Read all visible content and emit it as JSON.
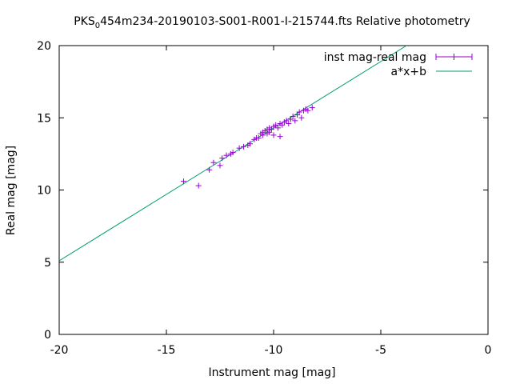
{
  "chart_data": {
    "type": "scatter",
    "title_main": "PKS",
    "title_sub": "0",
    "title_rest": "454m234-20190103-S001-R001-I-215744.fts Relative photometry",
    "xlabel": "Instrument mag [mag]",
    "ylabel": "Real mag [mag]",
    "xlim": [
      -20,
      0
    ],
    "ylim": [
      0,
      20
    ],
    "xticks": [
      -20,
      -15,
      -10,
      -5,
      0
    ],
    "yticks": [
      0,
      5,
      10,
      15,
      20
    ],
    "grid": false,
    "legend_position": "top-right",
    "series": [
      {
        "name": "inst mag-real mag",
        "color": "#9400d3",
        "points": [
          {
            "x": -14.2,
            "y": 10.6
          },
          {
            "x": -13.5,
            "y": 10.3
          },
          {
            "x": -13.0,
            "y": 11.4
          },
          {
            "x": -12.8,
            "y": 11.9
          },
          {
            "x": -12.5,
            "y": 11.7
          },
          {
            "x": -12.4,
            "y": 12.2
          },
          {
            "x": -12.2,
            "y": 12.4
          },
          {
            "x": -12.0,
            "y": 12.5
          },
          {
            "x": -11.9,
            "y": 12.6
          },
          {
            "x": -11.6,
            "y": 12.9
          },
          {
            "x": -11.4,
            "y": 13.0
          },
          {
            "x": -11.2,
            "y": 13.1
          },
          {
            "x": -11.1,
            "y": 13.2
          },
          {
            "x": -10.9,
            "y": 13.5
          },
          {
            "x": -10.8,
            "y": 13.6
          },
          {
            "x": -10.7,
            "y": 13.6
          },
          {
            "x": -10.6,
            "y": 13.9
          },
          {
            "x": -10.5,
            "y": 13.8
          },
          {
            "x": -10.5,
            "y": 14.0
          },
          {
            "x": -10.4,
            "y": 14.1
          },
          {
            "x": -10.3,
            "y": 14.2
          },
          {
            "x": -10.3,
            "y": 13.9
          },
          {
            "x": -10.2,
            "y": 14.3
          },
          {
            "x": -10.2,
            "y": 14.0
          },
          {
            "x": -10.1,
            "y": 14.2
          },
          {
            "x": -10.0,
            "y": 14.4
          },
          {
            "x": -10.0,
            "y": 13.8
          },
          {
            "x": -9.9,
            "y": 14.5
          },
          {
            "x": -9.8,
            "y": 14.3
          },
          {
            "x": -9.7,
            "y": 14.6
          },
          {
            "x": -9.7,
            "y": 13.7
          },
          {
            "x": -9.6,
            "y": 14.5
          },
          {
            "x": -9.5,
            "y": 14.7
          },
          {
            "x": -9.4,
            "y": 14.8
          },
          {
            "x": -9.3,
            "y": 14.6
          },
          {
            "x": -9.2,
            "y": 14.9
          },
          {
            "x": -9.1,
            "y": 15.1
          },
          {
            "x": -9.0,
            "y": 14.8
          },
          {
            "x": -8.9,
            "y": 15.2
          },
          {
            "x": -8.8,
            "y": 15.4
          },
          {
            "x": -8.7,
            "y": 15.0
          },
          {
            "x": -8.6,
            "y": 15.5
          },
          {
            "x": -8.5,
            "y": 15.6
          },
          {
            "x": -8.4,
            "y": 15.5
          },
          {
            "x": -8.2,
            "y": 15.7
          }
        ]
      },
      {
        "name": "a*x+b",
        "color": "#009e73",
        "line": {
          "x": [
            -20,
            -3.8
          ],
          "y": [
            5.1,
            20
          ]
        }
      }
    ]
  }
}
